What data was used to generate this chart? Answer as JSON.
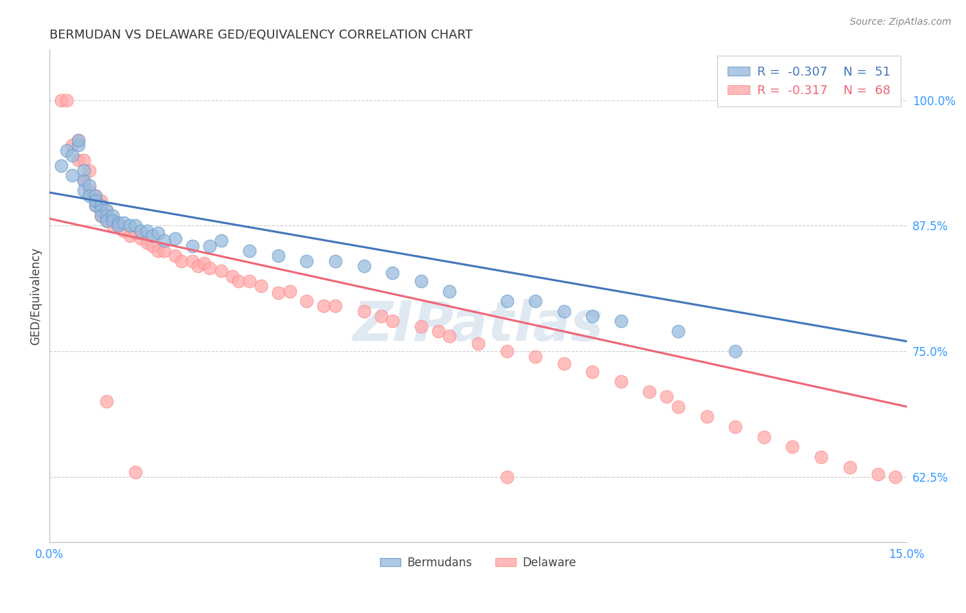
{
  "title": "BERMUDAN VS DELAWARE GED/EQUIVALENCY CORRELATION CHART",
  "source": "Source: ZipAtlas.com",
  "ylabel": "GED/Equivalency",
  "ytick_labels": [
    "100.0%",
    "87.5%",
    "75.0%",
    "62.5%"
  ],
  "ytick_values": [
    1.0,
    0.875,
    0.75,
    0.625
  ],
  "xtick_labels": [
    "0.0%",
    "15.0%"
  ],
  "xtick_values": [
    0.0,
    0.15
  ],
  "xlim": [
    0.0,
    0.15
  ],
  "ylim": [
    0.56,
    1.05
  ],
  "legend_blue_r": "-0.307",
  "legend_blue_n": "51",
  "legend_pink_r": "-0.317",
  "legend_pink_n": "68",
  "legend_label_blue": "Bermudans",
  "legend_label_pink": "Delaware",
  "blue_color": "#99BBDD",
  "pink_color": "#FFAAAA",
  "blue_line_color": "#4477BB",
  "pink_line_color": "#EE6677",
  "blue_scatter_edge": "#6699CC",
  "pink_scatter_edge": "#FF8888",
  "blue_points_x": [
    0.002,
    0.003,
    0.004,
    0.004,
    0.005,
    0.005,
    0.006,
    0.006,
    0.006,
    0.007,
    0.007,
    0.008,
    0.008,
    0.008,
    0.009,
    0.009,
    0.009,
    0.01,
    0.01,
    0.01,
    0.011,
    0.011,
    0.012,
    0.012,
    0.013,
    0.014,
    0.015,
    0.016,
    0.017,
    0.018,
    0.019,
    0.02,
    0.022,
    0.025,
    0.028,
    0.03,
    0.035,
    0.04,
    0.045,
    0.05,
    0.055,
    0.06,
    0.065,
    0.07,
    0.08,
    0.085,
    0.09,
    0.095,
    0.1,
    0.11,
    0.12
  ],
  "blue_points_y": [
    0.935,
    0.95,
    0.945,
    0.925,
    0.955,
    0.96,
    0.93,
    0.92,
    0.91,
    0.915,
    0.905,
    0.905,
    0.895,
    0.9,
    0.895,
    0.89,
    0.885,
    0.89,
    0.885,
    0.88,
    0.885,
    0.88,
    0.878,
    0.875,
    0.878,
    0.875,
    0.875,
    0.87,
    0.87,
    0.865,
    0.868,
    0.86,
    0.862,
    0.855,
    0.855,
    0.86,
    0.85,
    0.845,
    0.84,
    0.84,
    0.835,
    0.828,
    0.82,
    0.81,
    0.8,
    0.8,
    0.79,
    0.785,
    0.78,
    0.77,
    0.75
  ],
  "pink_points_x": [
    0.002,
    0.003,
    0.004,
    0.005,
    0.005,
    0.006,
    0.006,
    0.007,
    0.007,
    0.008,
    0.008,
    0.009,
    0.009,
    0.01,
    0.01,
    0.011,
    0.011,
    0.012,
    0.013,
    0.014,
    0.015,
    0.016,
    0.017,
    0.018,
    0.019,
    0.02,
    0.022,
    0.023,
    0.025,
    0.026,
    0.027,
    0.028,
    0.03,
    0.032,
    0.033,
    0.035,
    0.037,
    0.04,
    0.042,
    0.045,
    0.048,
    0.05,
    0.055,
    0.058,
    0.06,
    0.065,
    0.068,
    0.07,
    0.075,
    0.08,
    0.085,
    0.09,
    0.095,
    0.1,
    0.105,
    0.108,
    0.11,
    0.115,
    0.12,
    0.125,
    0.13,
    0.135,
    0.14,
    0.145,
    0.148,
    0.01,
    0.015,
    0.08
  ],
  "pink_points_y": [
    1.0,
    1.0,
    0.955,
    0.96,
    0.94,
    0.94,
    0.92,
    0.93,
    0.91,
    0.905,
    0.895,
    0.9,
    0.885,
    0.89,
    0.88,
    0.88,
    0.875,
    0.875,
    0.87,
    0.865,
    0.868,
    0.862,
    0.858,
    0.855,
    0.85,
    0.85,
    0.845,
    0.84,
    0.84,
    0.835,
    0.838,
    0.833,
    0.83,
    0.825,
    0.82,
    0.82,
    0.815,
    0.808,
    0.81,
    0.8,
    0.795,
    0.795,
    0.79,
    0.785,
    0.78,
    0.775,
    0.77,
    0.765,
    0.758,
    0.75,
    0.745,
    0.738,
    0.73,
    0.72,
    0.71,
    0.705,
    0.695,
    0.685,
    0.675,
    0.665,
    0.655,
    0.645,
    0.635,
    0.628,
    0.625,
    0.7,
    0.63,
    0.625
  ],
  "blue_trend_x": [
    0.0,
    0.15
  ],
  "blue_trend_y": [
    0.908,
    0.76
  ],
  "pink_trend_x": [
    0.0,
    0.15
  ],
  "pink_trend_y": [
    0.882,
    0.695
  ]
}
